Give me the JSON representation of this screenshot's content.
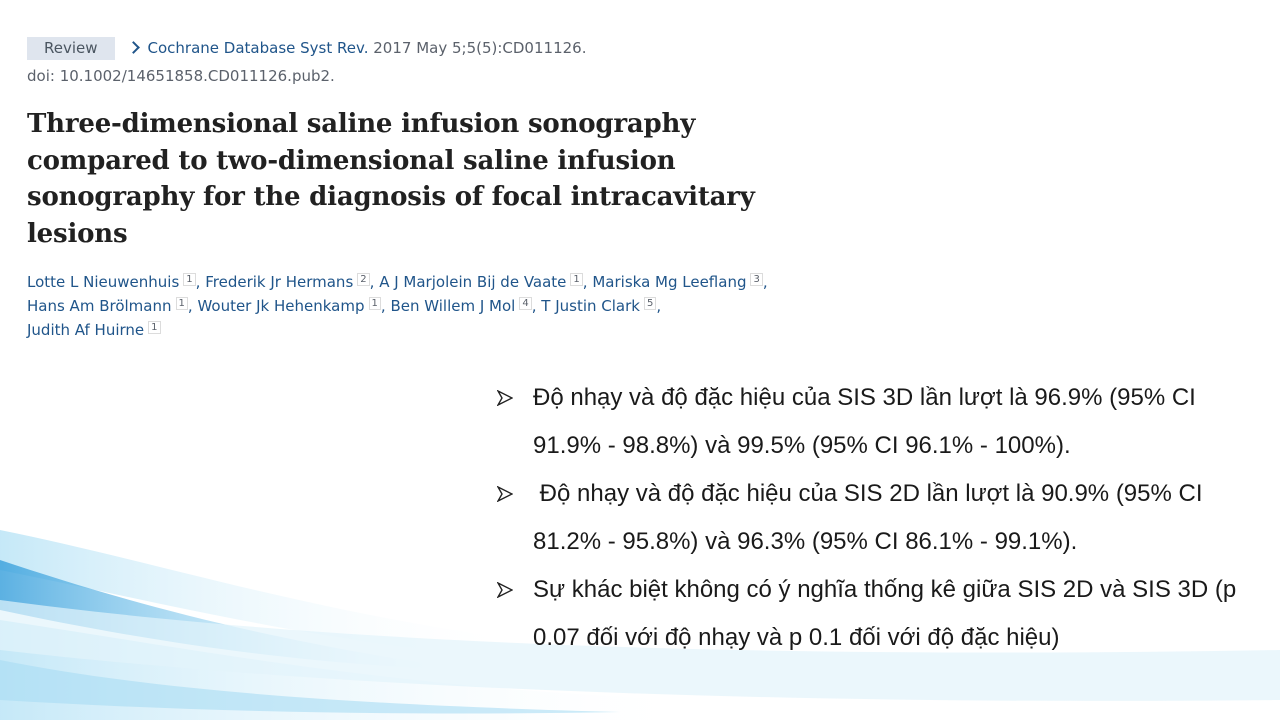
{
  "citation": {
    "badge": "Review",
    "journal": "Cochrane Database Syst Rev.",
    "date": "2017 May 5;5(5):CD011126.",
    "doi": "doi: 10.1002/14651858.CD011126.pub2."
  },
  "title_lines": [
    "Three-dimensional saline infusion sonography",
    "compared to two-dimensional saline infusion",
    "sonography for the diagnosis of focal intracavitary",
    "lesions"
  ],
  "authors": [
    {
      "name": "Lotte L Nieuwenhuis",
      "sup": "1",
      "sep": ","
    },
    {
      "name": "Frederik Jr Hermans",
      "sup": "2",
      "sep": ","
    },
    {
      "name": "A J Marjolein Bij de Vaate",
      "sup": "1",
      "sep": ","
    },
    {
      "name": "Mariska Mg Leeflang",
      "sup": "3",
      "sep": ","
    },
    {
      "name": "Hans Am Brölmann",
      "sup": "1",
      "sep": ","
    },
    {
      "name": "Wouter Jk Hehenkamp",
      "sup": "1",
      "sep": ","
    },
    {
      "name": "Ben Willem J Mol",
      "sup": "4",
      "sep": ","
    },
    {
      "name": "T Justin Clark",
      "sup": "5",
      "sep": ","
    },
    {
      "name": "Judith Af Huirne",
      "sup": "1"
    }
  ],
  "bullets": [
    "Độ nhạy và độ đặc hiệu của SIS 3D lần lượt là 96.9% (95% CI 91.9% - 98.8%) và 99.5% (95% CI 96.1% - 100%).",
    " Độ nhạy và độ đặc hiệu của SIS 2D lần lượt là 90.9% (95% CI 81.2% - 95.8%) và 96.3% (95% CI 86.1% - 99.1%).",
    "Sự khác biệt không có ý nghĩa thống kê giữa SIS 2D và SIS 3D (p 0.07 đối với độ nhạy và p 0.1 đối với độ đặc hiệu)"
  ]
}
